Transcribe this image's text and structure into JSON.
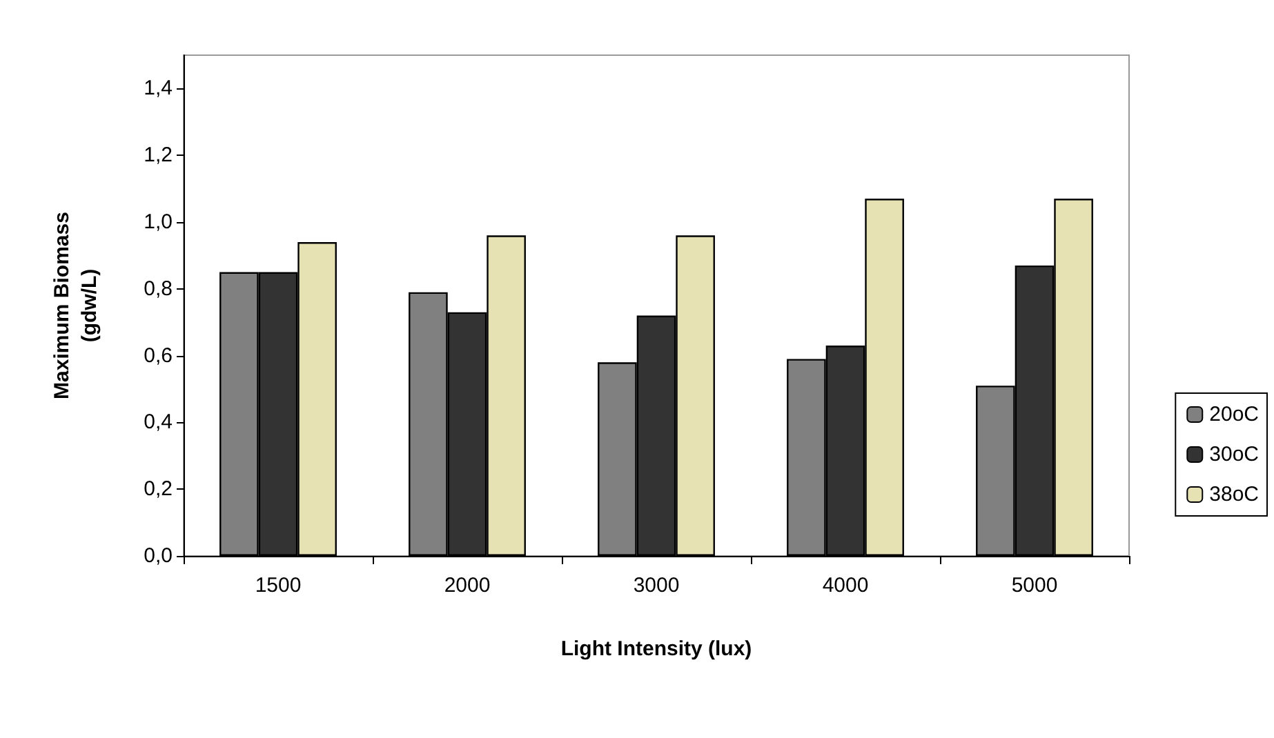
{
  "chart_data": {
    "type": "bar",
    "xlabel": "Light Intensity (lux)",
    "ylabel": "Maximum Biomass\n(gdw/L)",
    "categories": [
      "1500",
      "2000",
      "3000",
      "4000",
      "5000"
    ],
    "series": [
      {
        "name": "20oC",
        "color": "#808080",
        "values": [
          0.85,
          0.79,
          0.58,
          0.59,
          0.51
        ]
      },
      {
        "name": "30oC",
        "color": "#333333",
        "values": [
          0.85,
          0.73,
          0.72,
          0.63,
          0.87
        ]
      },
      {
        "name": "38oC",
        "color": "#e6e2b4",
        "values": [
          0.94,
          0.96,
          0.96,
          1.07,
          1.07
        ]
      }
    ],
    "ylim": [
      0,
      1.5
    ],
    "yticks": [
      {
        "value": 0,
        "label": "0,0"
      },
      {
        "value": 0.2,
        "label": "0,2"
      },
      {
        "value": 0.4,
        "label": "0,4"
      },
      {
        "value": 0.6,
        "label": "0,6"
      },
      {
        "value": 0.8,
        "label": "0,8"
      },
      {
        "value": 1.0,
        "label": "1,0"
      },
      {
        "value": 1.2,
        "label": "1,2"
      },
      {
        "value": 1.4,
        "label": "1,4"
      }
    ],
    "grid": false,
    "legend": "right"
  }
}
